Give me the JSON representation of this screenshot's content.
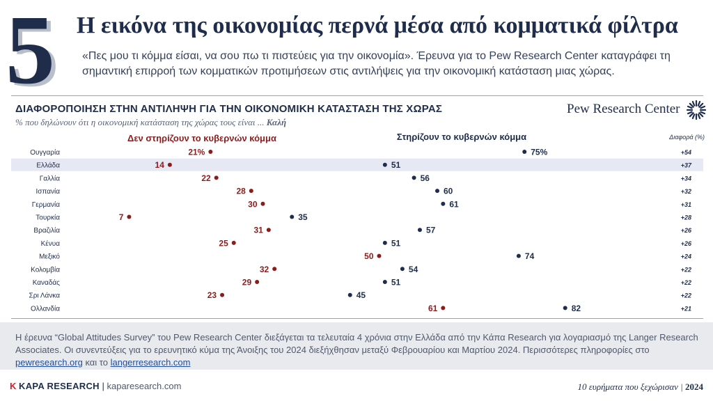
{
  "header": {
    "number": "5",
    "title": "Η εικόνα της οικονομίας περνά μέσα από κομματικά φίλτρα",
    "subtitle": "«Πες μου τι κόμμα είσαι, να σου πω τι πιστεύεις για την οικονομία». Έρευνα για το Pew Research Center καταγράφει τη σημαντική επιρροή των κομματικών προτιμήσεων στις αντιλήψεις για την οικονομική κατάσταση μιας χώρας."
  },
  "logo": {
    "text": "Pew Research Center",
    "icon": "pew-sunburst-icon"
  },
  "chart_data": {
    "type": "dot-plot",
    "title": "ΔΙΑΦΟΡΟΠΟΙΗΣΗ ΣΤΗΝ ΑΝΤΙΛΗΨΗ ΓΙΑ ΤΗΝ ΟΙΚΟΝΟΜΙΚΗ ΚΑΤΑΣΤΑΣΗ ΤΗΣ ΧΩΡΑΣ",
    "subtitle_prefix": "% που δηλώνουν ότι η οικονομική κατάσταση της χώρας τους είναι ... ",
    "subtitle_emph": "Καλή",
    "diff_header": "Διαφορά (%)",
    "highlight_category": "Ελλάδα",
    "categories": [
      "Ουγγαρία",
      "Ελλάδα",
      "Γαλλία",
      "Ισπανία",
      "Γερμανία",
      "Τουρκία",
      "Βραζιλία",
      "Κένυα",
      "Μεξικό",
      "Κολομβία",
      "Καναδάς",
      "Σρι Λάνκα",
      "Ολλανδία"
    ],
    "series": [
      {
        "name": "Δεν στηρίζουν το κυβερνών κόμμα",
        "color": "#8b1c1c",
        "values": [
          21,
          14,
          22,
          28,
          30,
          7,
          31,
          25,
          50,
          32,
          29,
          23,
          61
        ]
      },
      {
        "name": "Στηρίζουν το κυβερνών κόμμα",
        "color": "#1f2d4a",
        "values": [
          75,
          51,
          56,
          60,
          61,
          35,
          57,
          51,
          74,
          54,
          51,
          45,
          82
        ]
      }
    ],
    "differences": [
      "+54",
      "+37",
      "+34",
      "+32",
      "+31",
      "+28",
      "+26",
      "+26",
      "+24",
      "+22",
      "+22",
      "+22",
      "+21"
    ]
  },
  "footnote": {
    "text": "Η έρευνα “Global Attitudes Survey” του Pew Research Center διεξάγεται τα τελευταία 4 χρόνια στην Ελλάδα από την Κάπα Research για λογαριασμό της Langer Research Associates. Οι συνεντεύξεις για το ερευνητικό κύμα της Άνοιξης του 2024 διεξήχθησαν μεταξύ Φεβρουαρίου και Μαρτίου 2024. Περισσότερες πληροφορίες στο ",
    "link1": "pewresearch.org",
    "middle": " και το ",
    "link2": "langerresearch.com"
  },
  "footer": {
    "brand_k": "K",
    "brand_name": "KAPA RESEARCH",
    "brand_url": "kaparesearch.com",
    "right_text": "10 ευρήματα που ξεχώρισαν",
    "year": "2024"
  }
}
